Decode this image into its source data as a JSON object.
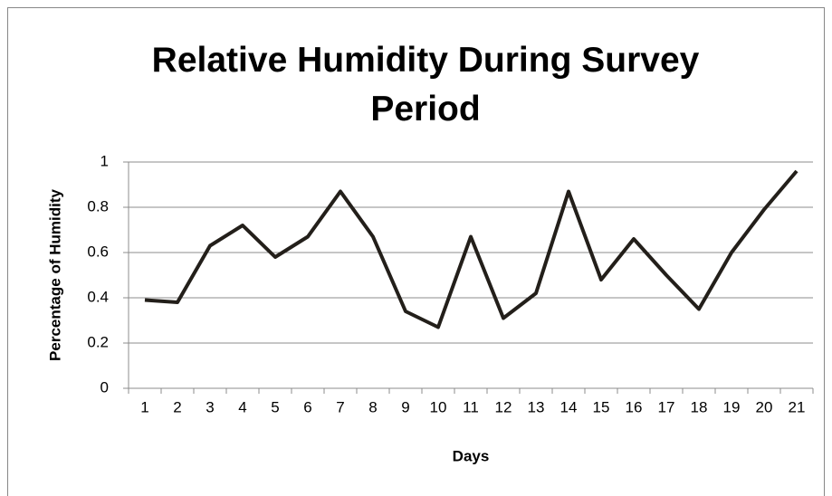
{
  "chart_data": {
    "type": "line",
    "title": "Relative Humidity During Survey Period",
    "x_label": "Days",
    "y_label": "Percentage of Humidity",
    "categories": [
      "1",
      "2",
      "3",
      "4",
      "5",
      "6",
      "7",
      "8",
      "9",
      "10",
      "11",
      "12",
      "13",
      "14",
      "15",
      "16",
      "17",
      "18",
      "19",
      "20",
      "21"
    ],
    "series": [
      {
        "name": "Relative Humidity",
        "color": "#231f1a",
        "values": [
          0.39,
          0.38,
          0.63,
          0.72,
          0.58,
          0.67,
          0.87,
          0.67,
          0.34,
          0.27,
          0.67,
          0.31,
          0.42,
          0.87,
          0.48,
          0.66,
          0.5,
          0.35,
          0.6,
          0.79,
          0.96
        ]
      }
    ],
    "ylim": [
      0,
      1
    ],
    "yticks": [
      0,
      0.2,
      0.4,
      0.6,
      0.8,
      1
    ],
    "grid": true
  }
}
